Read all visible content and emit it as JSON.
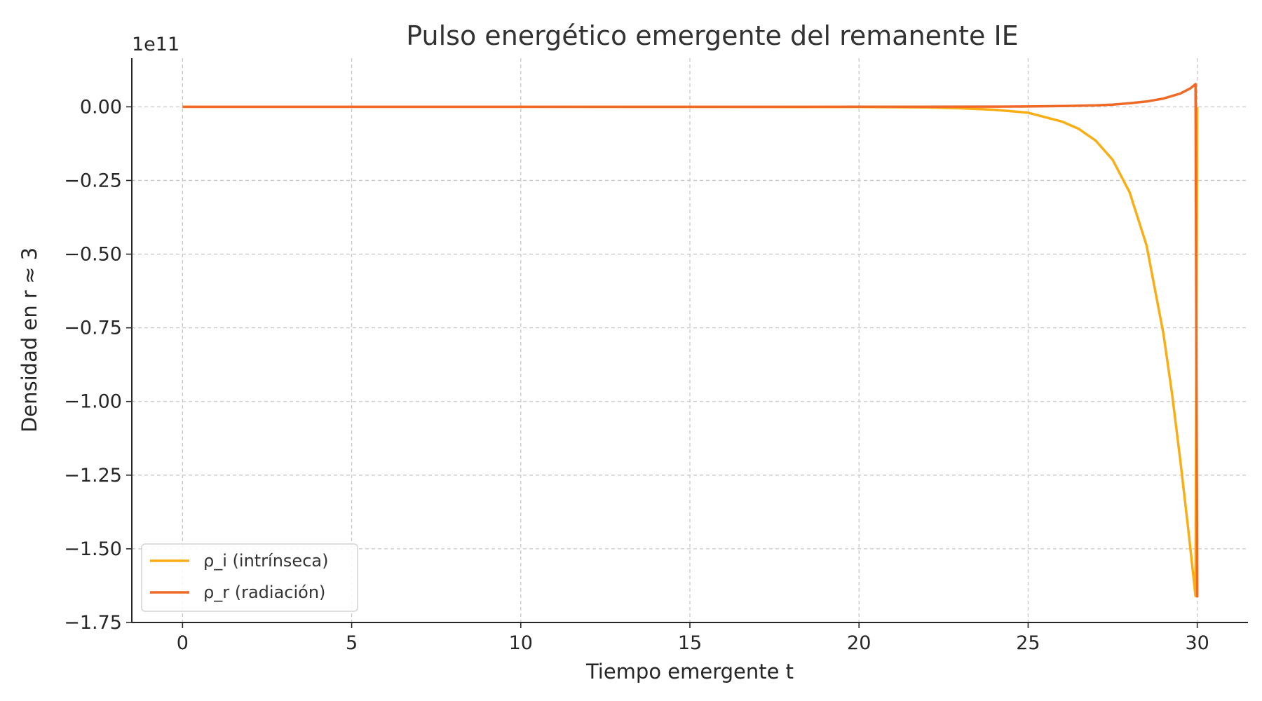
{
  "chart_data": {
    "type": "line",
    "title": "Pulso energético emergente del remanente IE",
    "xlabel": "Tiempo emergente t",
    "ylabel": "Densidad en r ≈ 3",
    "y_offset_text": "1e11",
    "y_scale_factor": 100000000000.0,
    "xlim": [
      -1.5,
      31.5
    ],
    "ylim": [
      -1.75,
      0.165
    ],
    "x_ticks": [
      0,
      5,
      10,
      15,
      20,
      25,
      30
    ],
    "x_tick_labels": [
      "0",
      "5",
      "10",
      "15",
      "20",
      "25",
      "30"
    ],
    "y_ticks": [
      0,
      -0.25,
      -0.5,
      -0.75,
      -1.0,
      -1.25,
      -1.5,
      -1.75
    ],
    "y_tick_labels": [
      "0.00",
      "−0.25",
      "−0.50",
      "−0.75",
      "−1.00",
      "−1.25",
      "−1.50",
      "−1.75"
    ],
    "grid": true,
    "legend_position": "lower-left",
    "series": [
      {
        "name": "ρ_i (intrínseca)",
        "color": "#F9AE15",
        "x": [
          0,
          10,
          20,
          22,
          23,
          24,
          25,
          26,
          26.5,
          27,
          27.5,
          28,
          28.5,
          29,
          29.25,
          29.5,
          29.75,
          29.95,
          30.0
        ],
        "y": [
          0,
          0,
          -0.0005,
          -0.002,
          -0.005,
          -0.01,
          -0.02,
          -0.05,
          -0.075,
          -0.115,
          -0.18,
          -0.29,
          -0.47,
          -0.77,
          -0.97,
          -1.2,
          -1.45,
          -1.66,
          0
        ]
      },
      {
        "name": "ρ_r (radiación)",
        "color": "#EF6A27",
        "x": [
          0,
          10,
          20,
          22,
          24,
          25,
          26,
          27,
          27.5,
          28,
          28.5,
          29,
          29.5,
          29.8,
          29.95,
          30.0
        ],
        "y": [
          0,
          0,
          0.0001,
          0.0003,
          0.0007,
          0.0012,
          0.0025,
          0.005,
          0.0075,
          0.012,
          0.018,
          0.028,
          0.045,
          0.063,
          0.077,
          -1.665
        ]
      }
    ]
  }
}
